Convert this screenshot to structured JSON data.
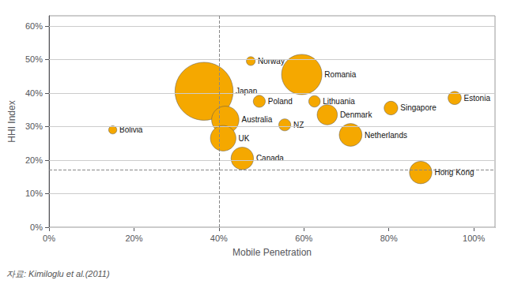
{
  "chart_data": {
    "type": "scatter",
    "xlabel": "Mobile Penetration",
    "ylabel": "HHI Index",
    "source": "자료: Kimiloglu et al.(2011)",
    "names": [
      "Bolivia",
      "Japan",
      "Norway",
      "Australia",
      "UK",
      "Canada",
      "Poland",
      "NZ",
      "Romania",
      "Lithuania",
      "Denmark",
      "Netherlands",
      "Singapore",
      "Estonia",
      "Hong Kong"
    ],
    "x": [
      0.15,
      0.365,
      0.475,
      0.415,
      0.41,
      0.455,
      0.495,
      0.555,
      0.595,
      0.625,
      0.655,
      0.71,
      0.805,
      0.955,
      0.875
    ],
    "y": [
      0.29,
      0.405,
      0.495,
      0.32,
      0.265,
      0.205,
      0.375,
      0.305,
      0.455,
      0.375,
      0.335,
      0.275,
      0.355,
      0.385,
      0.163
    ],
    "sizes": [
      55,
      2800,
      65,
      620,
      540,
      420,
      120,
      120,
      1350,
      110,
      340,
      430,
      155,
      145,
      420
    ],
    "color": "#F5A800",
    "reference_lines": {
      "x": [
        0.4
      ],
      "y": [
        0.167
      ]
    },
    "xlim": [
      0.0,
      1.05
    ],
    "ylim": [
      0.0,
      0.63
    ],
    "xticks": [
      {
        "value": 0.0,
        "label": "0%"
      },
      {
        "value": 0.2,
        "label": "20%"
      },
      {
        "value": 0.4,
        "label": "40%"
      },
      {
        "value": 0.6,
        "label": "60%"
      },
      {
        "value": 0.8,
        "label": "80%"
      },
      {
        "value": 1.0,
        "label": "100%"
      }
    ],
    "yticks": [
      {
        "value": 0.0,
        "label": "0%"
      },
      {
        "value": 0.1,
        "label": "10%"
      },
      {
        "value": 0.2,
        "label": "20%"
      },
      {
        "value": 0.3,
        "label": "30%"
      },
      {
        "value": 0.4,
        "label": "40%"
      },
      {
        "value": 0.5,
        "label": "50%"
      },
      {
        "value": 0.6,
        "label": "60%"
      }
    ],
    "grid": "y"
  }
}
